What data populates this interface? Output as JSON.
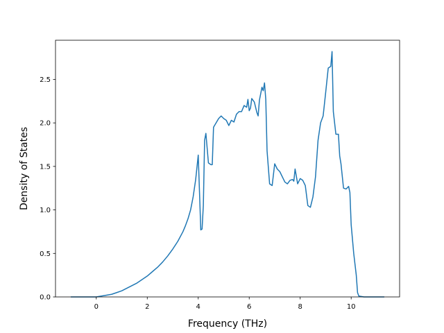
{
  "chart_data": {
    "type": "line",
    "title": "",
    "xlabel": "Frequency (THz)",
    "ylabel": "Density of States",
    "xlim": [
      -1.6,
      11.9
    ],
    "ylim": [
      0.0,
      2.95
    ],
    "x_ticks": [
      0,
      2,
      4,
      6,
      8,
      10
    ],
    "x_tick_labels": [
      "0",
      "2",
      "4",
      "6",
      "8",
      "10"
    ],
    "y_ticks": [
      0.0,
      0.5,
      1.0,
      1.5,
      2.0,
      2.5
    ],
    "y_tick_labels": [
      "0.0",
      "0.5",
      "1.0",
      "1.5",
      "2.0",
      "2.5"
    ],
    "grid": false,
    "legend": "none",
    "colors": {
      "line": "#1f77b4",
      "axes": "#000000",
      "background": "#ffffff"
    },
    "series": [
      {
        "x": [
          -1.0,
          -0.5,
          0.0,
          0.2,
          0.4,
          0.6,
          0.8,
          1.0,
          1.2,
          1.4,
          1.6,
          1.8,
          2.0,
          2.2,
          2.4,
          2.6,
          2.8,
          3.0,
          3.2,
          3.4,
          3.5,
          3.6,
          3.7,
          3.8,
          3.9,
          4.0,
          4.05,
          4.1,
          4.15,
          4.2,
          4.25,
          4.3,
          4.4,
          4.5,
          4.55,
          4.6,
          4.7,
          4.8,
          4.9,
          5.0,
          5.1,
          5.2,
          5.3,
          5.4,
          5.5,
          5.6,
          5.7,
          5.8,
          5.9,
          5.95,
          6.0,
          6.05,
          6.1,
          6.2,
          6.3,
          6.35,
          6.4,
          6.5,
          6.55,
          6.6,
          6.65,
          6.7,
          6.8,
          6.9,
          7.0,
          7.1,
          7.2,
          7.3,
          7.4,
          7.5,
          7.6,
          7.7,
          7.75,
          7.8,
          7.9,
          8.0,
          8.1,
          8.2,
          8.3,
          8.4,
          8.5,
          8.6,
          8.7,
          8.8,
          8.9,
          9.0,
          9.1,
          9.2,
          9.25,
          9.3,
          9.4,
          9.5,
          9.55,
          9.6,
          9.7,
          9.8,
          9.9,
          9.95,
          10.0,
          10.1,
          10.2,
          10.25,
          10.3,
          10.5,
          11.0,
          11.3
        ],
        "values": [
          0.0,
          0.0,
          0.0,
          0.01,
          0.02,
          0.03,
          0.05,
          0.07,
          0.1,
          0.13,
          0.16,
          0.2,
          0.24,
          0.29,
          0.34,
          0.4,
          0.47,
          0.55,
          0.64,
          0.75,
          0.82,
          0.9,
          1.0,
          1.15,
          1.35,
          1.63,
          1.2,
          0.77,
          0.78,
          1.05,
          1.8,
          1.88,
          1.54,
          1.52,
          1.52,
          1.95,
          2.0,
          2.05,
          2.08,
          2.05,
          2.03,
          1.97,
          2.03,
          2.01,
          2.1,
          2.13,
          2.13,
          2.2,
          2.18,
          2.27,
          2.14,
          2.17,
          2.28,
          2.24,
          2.12,
          2.08,
          2.26,
          2.41,
          2.37,
          2.46,
          2.27,
          1.68,
          1.3,
          1.28,
          1.53,
          1.47,
          1.44,
          1.38,
          1.32,
          1.3,
          1.34,
          1.35,
          1.33,
          1.47,
          1.3,
          1.36,
          1.34,
          1.28,
          1.05,
          1.03,
          1.15,
          1.38,
          1.8,
          2.0,
          2.08,
          2.35,
          2.63,
          2.65,
          2.82,
          2.13,
          1.87,
          1.87,
          1.62,
          1.53,
          1.25,
          1.24,
          1.27,
          1.2,
          0.83,
          0.5,
          0.25,
          0.05,
          0.01,
          0.0,
          0.0,
          0.0
        ]
      }
    ]
  }
}
